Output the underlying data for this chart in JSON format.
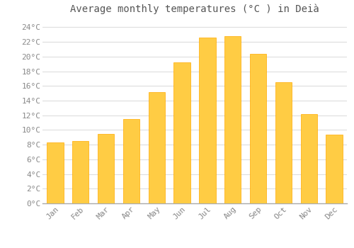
{
  "title": "Average monthly temperatures (°C ) in Deià",
  "months": [
    "Jan",
    "Feb",
    "Mar",
    "Apr",
    "May",
    "Jun",
    "Jul",
    "Aug",
    "Sep",
    "Oct",
    "Nov",
    "Dec"
  ],
  "values": [
    8.3,
    8.5,
    9.5,
    11.5,
    15.2,
    19.2,
    22.6,
    22.8,
    20.4,
    16.5,
    12.2,
    9.4
  ],
  "bar_color_top": "#FFCC44",
  "bar_color_bottom": "#FFAA00",
  "background_color": "#FFFFFF",
  "grid_color": "#DDDDDD",
  "text_color": "#888888",
  "title_color": "#555555",
  "ylim": [
    0,
    25
  ],
  "title_fontsize": 10,
  "tick_fontsize": 8
}
